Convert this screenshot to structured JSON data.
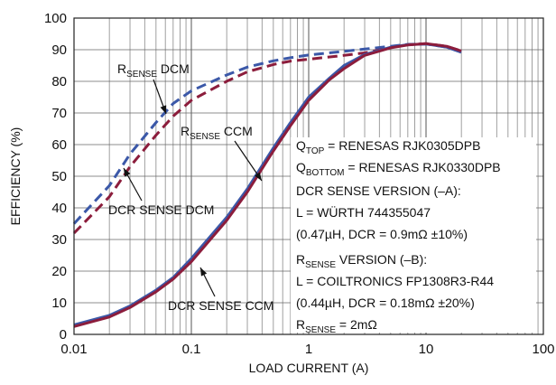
{
  "chart_data": {
    "type": "line",
    "title": "",
    "xlabel": "LOAD CURRENT (A)",
    "ylabel": "EFFICIENCY (%)",
    "xscale": "log",
    "xlim": [
      0.01,
      100
    ],
    "ylim": [
      0,
      100
    ],
    "grid": true,
    "x_ticks": [
      "0.01",
      "0.1",
      "1",
      "10",
      "100"
    ],
    "y_ticks": [
      "0",
      "10",
      "20",
      "30",
      "40",
      "50",
      "60",
      "70",
      "80",
      "90",
      "100"
    ],
    "series": [
      {
        "name": "RSENSE DCM",
        "color": "#3b58a8",
        "dash": "dashed",
        "points": [
          [
            0.01,
            35
          ],
          [
            0.02,
            47
          ],
          [
            0.03,
            57
          ],
          [
            0.05,
            67
          ],
          [
            0.07,
            73
          ],
          [
            0.1,
            77
          ],
          [
            0.2,
            82
          ],
          [
            0.3,
            84.5
          ],
          [
            0.5,
            86.5
          ],
          [
            0.7,
            87.5
          ],
          [
            1,
            88.3
          ],
          [
            2,
            89.5
          ],
          [
            3,
            90.2
          ],
          [
            5,
            91.1
          ],
          [
            7,
            91.7
          ],
          [
            10,
            91.8
          ],
          [
            15,
            90.8
          ],
          [
            20,
            89.2
          ]
        ]
      },
      {
        "name": "DCR SENSE DCM",
        "color": "#8c1d3c",
        "dash": "dashed",
        "points": [
          [
            0.01,
            32
          ],
          [
            0.02,
            43.5
          ],
          [
            0.03,
            53
          ],
          [
            0.05,
            63
          ],
          [
            0.07,
            69
          ],
          [
            0.1,
            74
          ],
          [
            0.2,
            80
          ],
          [
            0.3,
            83
          ],
          [
            0.5,
            85.3
          ],
          [
            0.7,
            86.4
          ],
          [
            1,
            87
          ],
          [
            2,
            88.2
          ],
          [
            3,
            89
          ],
          [
            5,
            90.7
          ],
          [
            7,
            91.6
          ],
          [
            10,
            91.9
          ],
          [
            15,
            91.1
          ],
          [
            20,
            89.6
          ]
        ]
      },
      {
        "name": "RSENSE CCM",
        "color": "#3b58a8",
        "dash": "solid",
        "points": [
          [
            0.01,
            3
          ],
          [
            0.02,
            6
          ],
          [
            0.03,
            9
          ],
          [
            0.05,
            14
          ],
          [
            0.07,
            18
          ],
          [
            0.1,
            24
          ],
          [
            0.2,
            37
          ],
          [
            0.3,
            46
          ],
          [
            0.5,
            59
          ],
          [
            0.7,
            67
          ],
          [
            1,
            75
          ],
          [
            1.5,
            81
          ],
          [
            2,
            85
          ],
          [
            3,
            88.5
          ],
          [
            5,
            90.8
          ],
          [
            7,
            91.6
          ],
          [
            10,
            91.8
          ],
          [
            15,
            90.8
          ],
          [
            20,
            89.2
          ]
        ]
      },
      {
        "name": "DCR SENSE CCM",
        "color": "#8c1d3c",
        "dash": "solid",
        "points": [
          [
            0.01,
            2.5
          ],
          [
            0.02,
            5.5
          ],
          [
            0.03,
            8.5
          ],
          [
            0.05,
            13.5
          ],
          [
            0.07,
            17.5
          ],
          [
            0.1,
            23
          ],
          [
            0.2,
            36
          ],
          [
            0.3,
            45
          ],
          [
            0.5,
            58
          ],
          [
            0.7,
            66
          ],
          [
            1,
            74
          ],
          [
            1.5,
            80.5
          ],
          [
            2,
            84
          ],
          [
            3,
            88.2
          ],
          [
            5,
            90.6
          ],
          [
            7,
            91.5
          ],
          [
            10,
            91.9
          ],
          [
            15,
            91.1
          ],
          [
            20,
            89.6
          ]
        ]
      }
    ],
    "series_labels": [
      {
        "main": "R",
        "sub": "SENSE",
        "rest": " DCM"
      },
      {
        "main": "R",
        "sub": "SENSE",
        "rest": " CCM"
      },
      {
        "main": "DCR SENSE DCM",
        "sub": "",
        "rest": ""
      },
      {
        "main": "DCR SENSE CCM",
        "sub": "",
        "rest": ""
      }
    ],
    "annotation_lines": [
      [
        {
          "t": "Q"
        },
        {
          "t": "TOP",
          "sub": true
        },
        {
          "t": " = RENESAS RJK0305DPB"
        }
      ],
      [
        {
          "t": "Q"
        },
        {
          "t": "BOTTOM",
          "sub": true
        },
        {
          "t": " = RENESAS RJK0330DPB"
        }
      ],
      [
        {
          "t": "DCR SENSE VERSION (–A):"
        }
      ],
      [
        {
          "t": "L = WÜRTH 744355047"
        }
      ],
      [
        {
          "t": "(0.47µH, DCR = 0.9mΩ ±10%)"
        }
      ],
      [
        {
          "t": "R"
        },
        {
          "t": "SENSE",
          "sub": true
        },
        {
          "t": " VERSION (–B):"
        }
      ],
      [
        {
          "t": "L = COILTRONICS FP1308R3-R44"
        }
      ],
      [
        {
          "t": "(0.44µH, DCR = 0.18mΩ ±20%)"
        }
      ],
      [
        {
          "t": "R"
        },
        {
          "t": "SENSE",
          "sub": true
        },
        {
          "t": " = 2mΩ"
        }
      ]
    ]
  }
}
